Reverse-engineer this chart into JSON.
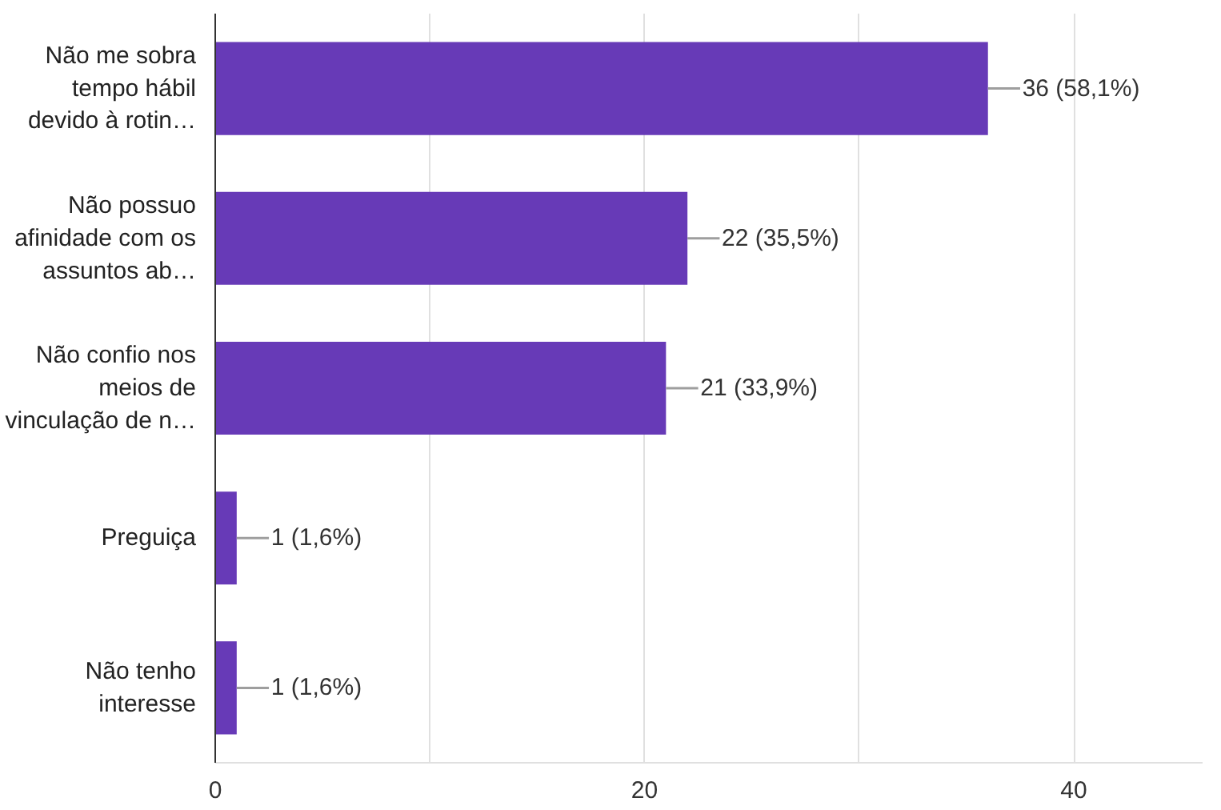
{
  "chart_data": {
    "type": "bar",
    "orientation": "horizontal",
    "categories": [
      "Não me sobra tempo hábil devido à rotin…",
      "Não possuo afinidade com os assuntos ab…",
      "Não confio nos meios de vinculação de n…",
      "Preguiça",
      "Não tenho interesse"
    ],
    "values": [
      36,
      22,
      21,
      1,
      1
    ],
    "value_labels": [
      "36 (58,1%)",
      "22 (35,5%)",
      "21 (33,9%)",
      "1 (1,6%)",
      "1 (1,6%)"
    ],
    "color": "#673ab7",
    "xlim": [
      0,
      46
    ],
    "xticks": [
      0,
      {
        "value": 10,
        "label": null
      },
      20,
      {
        "value": 30,
        "label": null
      },
      40
    ],
    "grid": "x"
  }
}
